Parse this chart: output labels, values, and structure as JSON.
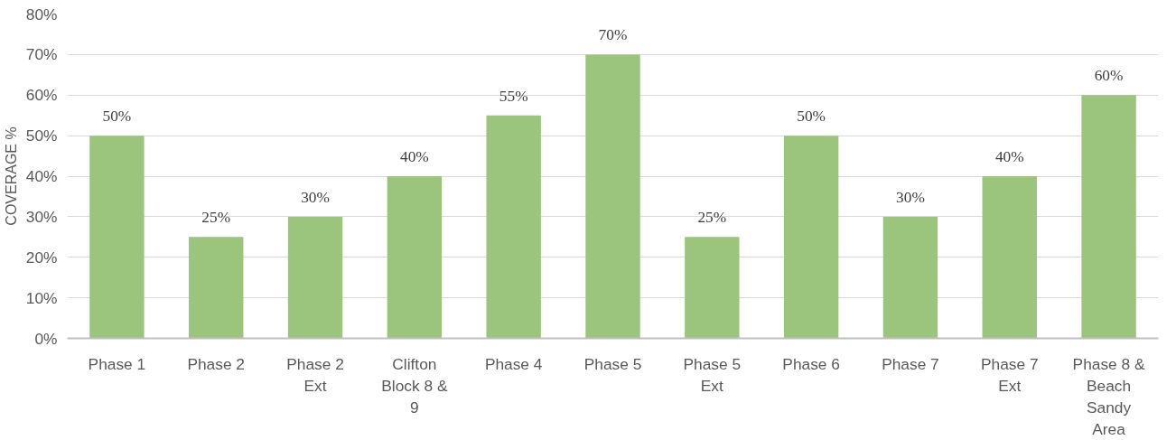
{
  "chart_data": {
    "type": "bar",
    "ylabel": "COVERAGE %",
    "categories": [
      "Phase 1",
      "Phase 2",
      "Phase 2 Ext",
      "Clifton Block 8 & 9",
      "Phase 4",
      "Phase 5",
      "Phase 5 Ext",
      "Phase 6",
      "Phase 7",
      "Phase 7 Ext",
      "Phase 8 & Beach Sandy Area"
    ],
    "values": [
      50,
      25,
      30,
      40,
      55,
      70,
      25,
      50,
      30,
      40,
      60
    ],
    "color": "#9bc47d",
    "ylim": [
      0,
      80
    ],
    "yticks": [
      {
        "value": 0,
        "label": "0%"
      },
      {
        "value": 10,
        "label": "10%"
      },
      {
        "value": 20,
        "label": "20%"
      },
      {
        "value": 30,
        "label": "30%"
      },
      {
        "value": 40,
        "label": "40%"
      },
      {
        "value": 50,
        "label": "50%"
      },
      {
        "value": 60,
        "label": "60%"
      },
      {
        "value": 70,
        "label": "70%"
      },
      {
        "value": 80,
        "label": "80%"
      }
    ],
    "value_labels": [
      "50%",
      "25%",
      "30%",
      "40%",
      "55%",
      "70%",
      "25%",
      "50%",
      "30%",
      "40%",
      "60%"
    ],
    "grid": "y"
  }
}
